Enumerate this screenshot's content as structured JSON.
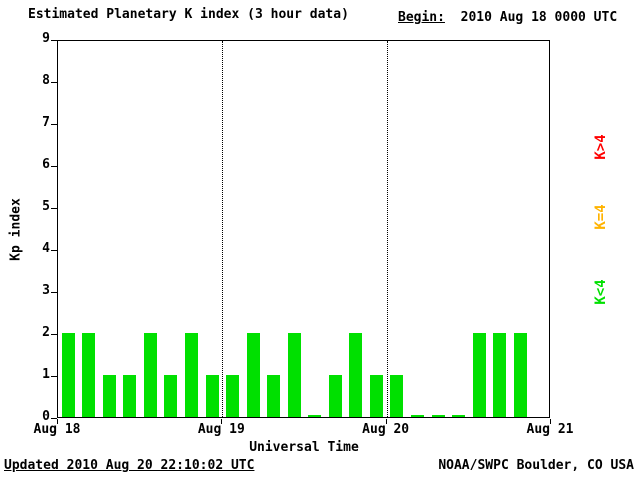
{
  "header": {
    "title": "Estimated Planetary K index (3 hour data)",
    "begin_label": "Begin:",
    "begin_value": "2010 Aug 18 0000 UTC"
  },
  "footer": {
    "updated": "Updated 2010 Aug 20 22:10:02 UTC",
    "source": "NOAA/SWPC Boulder, CO USA"
  },
  "legend": [
    {
      "label": "K>4",
      "color_key": "k_gt4"
    },
    {
      "label": "K=4",
      "color_key": "k_eq4"
    },
    {
      "label": "K<4",
      "color_key": "k_lt4"
    }
  ],
  "chart_data": {
    "type": "bar",
    "title": "Estimated Planetary K index (3 hour data)",
    "xlabel": "Universal Time",
    "ylabel": "Kp index",
    "ylim": [
      0,
      9
    ],
    "yticks": [
      0,
      1,
      2,
      3,
      4,
      5,
      6,
      7,
      8,
      9
    ],
    "x_day_labels": [
      "Aug 18",
      "Aug 19",
      "Aug 20",
      "Aug 21"
    ],
    "interval_hours": 3,
    "slots_per_day": 8,
    "num_days": 3,
    "grid": "dotted vertical lines at day boundaries",
    "legend_position": "right-rotated",
    "bar_values": [
      2,
      2,
      1,
      1,
      2,
      1,
      2,
      1,
      1,
      2,
      1,
      2,
      0,
      1,
      2,
      1,
      1,
      0,
      0,
      0,
      2,
      2,
      2
    ],
    "colors": {
      "k_gt4": "#ff0000",
      "k_eq4": "#ffb300",
      "k_lt4": "#00e000"
    }
  }
}
